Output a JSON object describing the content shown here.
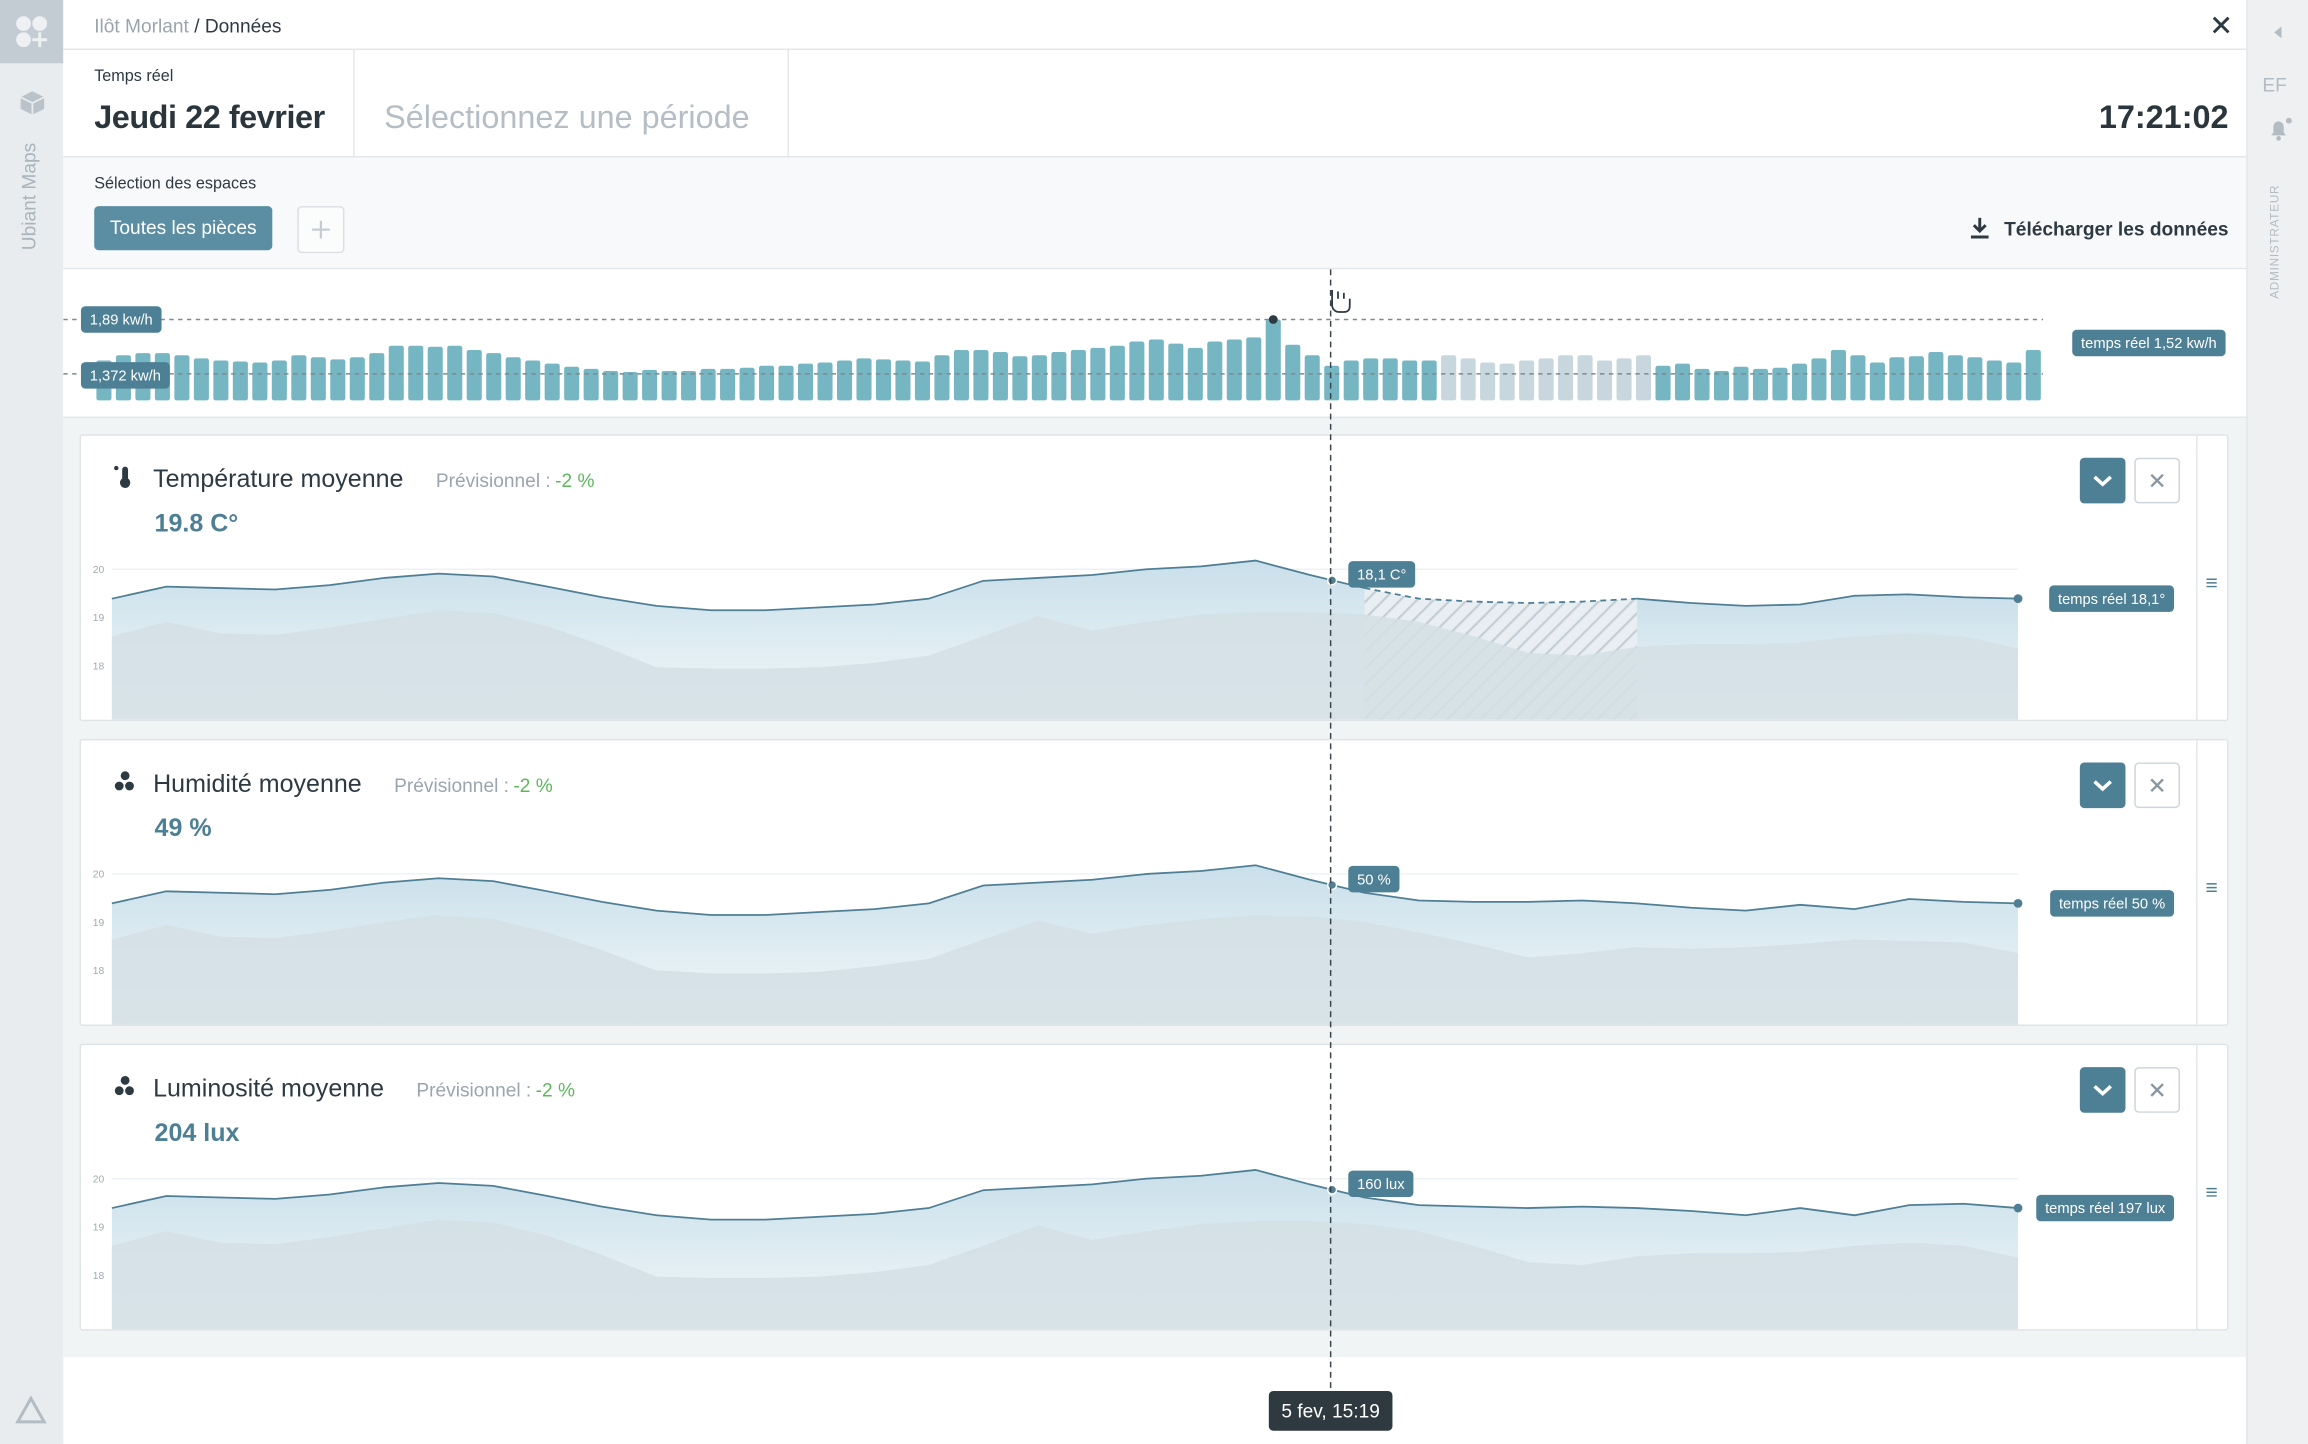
{
  "sidebar": {
    "app_name": "Ubiant Maps",
    "initials": "EF",
    "role": "ADMINISTRATEUR"
  },
  "breadcrumb": {
    "parent": "Ilôt Morlant",
    "current": "/ Données"
  },
  "header": {
    "mode": "Temps réel",
    "date": "Jeudi 22 fevrier",
    "period_placeholder": "Sélectionnez une période",
    "clock": "17:21:02"
  },
  "spaces": {
    "label": "Sélection des espaces",
    "selected": "Toutes les pièces",
    "download": "Télécharger les données"
  },
  "energy": {
    "type": "bar",
    "color": "#76b6c2",
    "forecast_color": "#c8d7dd",
    "ylim": [
      1.12,
      2.0
    ],
    "values": [
      1.5,
      1.55,
      1.57,
      1.57,
      1.55,
      1.52,
      1.5,
      1.49,
      1.48,
      1.5,
      1.55,
      1.53,
      1.51,
      1.53,
      1.57,
      1.64,
      1.64,
      1.63,
      1.64,
      1.6,
      1.57,
      1.53,
      1.5,
      1.47,
      1.44,
      1.42,
      1.4,
      1.39,
      1.41,
      1.4,
      1.4,
      1.42,
      1.42,
      1.43,
      1.45,
      1.45,
      1.47,
      1.48,
      1.5,
      1.52,
      1.51,
      1.5,
      1.49,
      1.55,
      1.6,
      1.6,
      1.58,
      1.54,
      1.55,
      1.58,
      1.6,
      1.62,
      1.64,
      1.68,
      1.7,
      1.66,
      1.62,
      1.68,
      1.7,
      1.72,
      1.89,
      1.65,
      1.55,
      1.45,
      1.5,
      1.52,
      1.52,
      1.5,
      1.5,
      null,
      null,
      null,
      null,
      null,
      null,
      null,
      null,
      null,
      null,
      null,
      1.45,
      1.47,
      1.42,
      1.4,
      1.44,
      1.42,
      1.43,
      1.47,
      1.52,
      1.6,
      1.55,
      1.48,
      1.53,
      1.54,
      1.58,
      1.55,
      1.53,
      1.5,
      1.48,
      1.6
    ],
    "forecast_values": [
      null,
      null,
      null,
      null,
      null,
      null,
      null,
      null,
      null,
      null,
      null,
      null,
      null,
      null,
      null,
      null,
      null,
      null,
      null,
      null,
      null,
      null,
      null,
      null,
      null,
      null,
      null,
      null,
      null,
      null,
      null,
      null,
      null,
      null,
      null,
      null,
      null,
      null,
      null,
      null,
      null,
      null,
      null,
      null,
      null,
      null,
      null,
      null,
      null,
      null,
      null,
      null,
      null,
      null,
      null,
      null,
      null,
      null,
      null,
      null,
      null,
      null,
      null,
      null,
      null,
      null,
      null,
      null,
      null,
      1.55,
      1.52,
      1.48,
      1.47,
      1.5,
      1.52,
      1.55,
      1.55,
      1.5,
      1.52,
      1.55,
      null,
      null,
      null,
      null,
      null,
      null,
      null,
      null,
      null,
      null,
      null,
      null,
      null,
      null,
      null,
      null,
      null,
      null,
      null,
      null
    ],
    "reference_lines": [
      {
        "value": 1.89,
        "label": "1,89 kw/h"
      },
      {
        "value": 1.372,
        "label": "1,372 kw/h"
      }
    ],
    "realtime_label": "temps réel 1,52 kw/h"
  },
  "cursor": {
    "timestamp": "5 fev, 15:19"
  },
  "panels": [
    {
      "title": "Température moyenne",
      "forecast_label": "Prévisionnel :",
      "forecast_change": "-2 %",
      "current": "19.8 C°",
      "cursor_label": "18,1 C°",
      "realtime_label": "temps réel 18,1°",
      "chart": {
        "type": "area",
        "color": "#4f7f94",
        "ylim": [
          16.88,
          20.48
        ],
        "yticks": [
          18,
          19,
          20
        ],
        "line": [
          19.39,
          19.64,
          19.61,
          19.58,
          19.67,
          19.82,
          19.91,
          19.85,
          19.64,
          19.42,
          19.24,
          19.15,
          19.15,
          19.21,
          19.27,
          19.39,
          19.76,
          19.82,
          19.88,
          20.0,
          20.06,
          20.18,
          19.88,
          19.61,
          null,
          null,
          null,
          null,
          19.39,
          19.3,
          19.24,
          19.27,
          19.45,
          19.48,
          19.42,
          19.39
        ],
        "forecast": [
          null,
          null,
          null,
          null,
          null,
          null,
          null,
          null,
          null,
          null,
          null,
          null,
          null,
          null,
          null,
          null,
          null,
          null,
          null,
          null,
          null,
          null,
          null,
          19.61,
          19.39,
          19.33,
          19.3,
          19.33,
          19.39,
          null,
          null,
          null,
          null,
          null,
          null,
          null
        ],
        "background": [
          18.61,
          18.91,
          18.67,
          18.64,
          18.79,
          18.97,
          19.15,
          19.09,
          18.82,
          18.42,
          17.97,
          17.94,
          17.94,
          17.97,
          18.06,
          18.21,
          18.61,
          19.03,
          18.73,
          18.91,
          19.06,
          19.12,
          19.12,
          19.06,
          18.91,
          18.61,
          18.27,
          18.21,
          18.39,
          18.45,
          18.45,
          18.48,
          18.61,
          18.67,
          18.61,
          18.36
        ]
      }
    },
    {
      "title": "Humidité moyenne",
      "forecast_label": "Prévisionnel :",
      "forecast_change": "-2 %",
      "current": "49 %",
      "cursor_label": "50 %",
      "realtime_label": "temps réel 50 %",
      "chart": {
        "type": "area",
        "color": "#4f7f94",
        "ylim": [
          16.88,
          20.48
        ],
        "yticks": [
          18,
          19,
          20
        ],
        "line": [
          19.39,
          19.64,
          19.61,
          19.58,
          19.67,
          19.82,
          19.91,
          19.85,
          19.64,
          19.42,
          19.24,
          19.15,
          19.15,
          19.21,
          19.27,
          19.39,
          19.76,
          19.82,
          19.88,
          20.0,
          20.06,
          20.18,
          19.88,
          19.61,
          19.45,
          19.42,
          19.42,
          19.45,
          19.39,
          19.3,
          19.24,
          19.36,
          19.27,
          19.48,
          19.42,
          19.39
        ],
        "background": [
          18.64,
          18.94,
          18.7,
          18.67,
          18.82,
          19.0,
          19.15,
          19.06,
          18.79,
          18.42,
          18.0,
          17.94,
          17.94,
          17.97,
          18.09,
          18.24,
          18.64,
          19.03,
          18.76,
          18.94,
          19.06,
          19.15,
          19.12,
          19.0,
          18.79,
          18.55,
          18.27,
          18.36,
          18.48,
          18.45,
          18.48,
          18.55,
          18.64,
          18.61,
          18.58,
          18.36
        ]
      }
    },
    {
      "title": "Luminosité moyenne",
      "forecast_label": "Prévisionnel :",
      "forecast_change": "-2 %",
      "current": "204 lux",
      "cursor_label": "160 lux",
      "realtime_label": "temps réel 197 lux",
      "chart": {
        "type": "area",
        "color": "#4f7f94",
        "ylim": [
          16.88,
          20.48
        ],
        "yticks": [
          18,
          19,
          20
        ],
        "line": [
          19.39,
          19.64,
          19.61,
          19.58,
          19.67,
          19.82,
          19.91,
          19.85,
          19.64,
          19.42,
          19.24,
          19.15,
          19.15,
          19.21,
          19.27,
          19.39,
          19.76,
          19.82,
          19.88,
          20.0,
          20.06,
          20.18,
          19.88,
          19.61,
          19.45,
          19.42,
          19.39,
          19.42,
          19.39,
          19.33,
          19.24,
          19.39,
          19.24,
          19.45,
          19.48,
          19.39
        ],
        "background": [
          18.61,
          18.91,
          18.67,
          18.64,
          18.79,
          18.97,
          19.15,
          19.09,
          18.82,
          18.42,
          17.97,
          17.94,
          17.94,
          17.97,
          18.06,
          18.21,
          18.61,
          19.03,
          18.73,
          18.91,
          19.06,
          19.12,
          19.12,
          19.06,
          18.91,
          18.61,
          18.27,
          18.21,
          18.39,
          18.45,
          18.45,
          18.48,
          18.61,
          18.67,
          18.61,
          18.36
        ]
      }
    }
  ]
}
